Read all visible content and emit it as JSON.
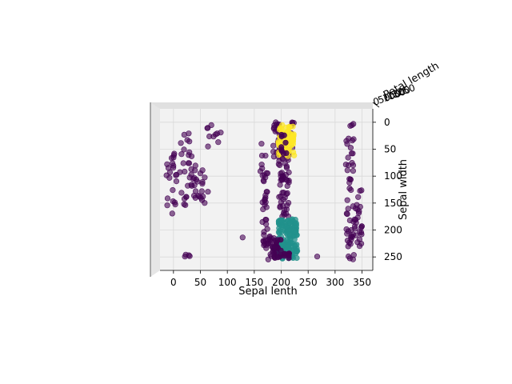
{
  "chart_data": {
    "type": "scatter",
    "projection": "3d",
    "xlabel": "Sepal lenth",
    "ylabel": "Sepal width",
    "zlabel": "Petal length",
    "x_ticks": [
      "0",
      "50",
      "100",
      "150",
      "200",
      "250",
      "300",
      "350"
    ],
    "y_ticks": [
      "0",
      "50",
      "100",
      "150",
      "200",
      "250"
    ],
    "z_ticks": [
      "0",
      "50",
      "100",
      "150",
      "200",
      "250"
    ],
    "xlim": [
      -25,
      370
    ],
    "ylim": [
      -25,
      275
    ],
    "grid": true,
    "colors": {
      "class_0": "#440154",
      "class_1": "#21918c",
      "class_2": "#fde725",
      "pane": "#f2f2f2",
      "grid": "#d9d9d9"
    },
    "clusters": [
      {
        "class": 0,
        "x_range": [
          -15,
          5
        ],
        "y_range": [
          35,
          170
        ],
        "n": 20
      },
      {
        "class": 0,
        "x_range": [
          5,
          40
        ],
        "y_range": [
          20,
          160
        ],
        "n": 28
      },
      {
        "class": 0,
        "x_range": [
          20,
          35
        ],
        "y_range": [
          240,
          250
        ],
        "n": 4
      },
      {
        "class": 0,
        "x_range": [
          30,
          65
        ],
        "y_range": [
          80,
          150
        ],
        "n": 24
      },
      {
        "class": 0,
        "x_range": [
          60,
          90
        ],
        "y_range": [
          5,
          50
        ],
        "n": 10
      },
      {
        "class": 0,
        "x_range": [
          160,
          175
        ],
        "y_range": [
          20,
          100
        ],
        "n": 8
      },
      {
        "class": 0,
        "x_range": [
          165,
          175
        ],
        "y_range": [
          90,
          235
        ],
        "n": 32
      },
      {
        "class": 0,
        "x_range": [
          175,
          195
        ],
        "y_range": [
          210,
          255
        ],
        "n": 30
      },
      {
        "class": 0,
        "x_range": [
          185,
          200
        ],
        "y_range": [
          0,
          65
        ],
        "n": 28
      },
      {
        "class": 0,
        "x_range": [
          195,
          215
        ],
        "y_range": [
          40,
          180
        ],
        "n": 60
      },
      {
        "class": 0,
        "x_range": [
          215,
          225
        ],
        "y_range": [
          0,
          60
        ],
        "n": 8
      },
      {
        "class": 0,
        "x_range": [
          320,
          335
        ],
        "y_range": [
          0,
          255
        ],
        "n": 48
      },
      {
        "class": 0,
        "x_range": [
          335,
          350
        ],
        "y_range": [
          120,
          235
        ],
        "n": 26
      },
      {
        "class": 0,
        "x_range": [
          125,
          135
        ],
        "y_range": [
          210,
          220
        ],
        "n": 1
      },
      {
        "class": 0,
        "x_range": [
          265,
          270
        ],
        "y_range": [
          245,
          255
        ],
        "n": 1
      },
      {
        "class": 1,
        "x_range": [
          195,
          230
        ],
        "y_range": [
          180,
          255
        ],
        "n": 150
      },
      {
        "class": 2,
        "x_range": [
          195,
          225
        ],
        "y_range": [
          5,
          65
        ],
        "n": 70
      }
    ]
  }
}
